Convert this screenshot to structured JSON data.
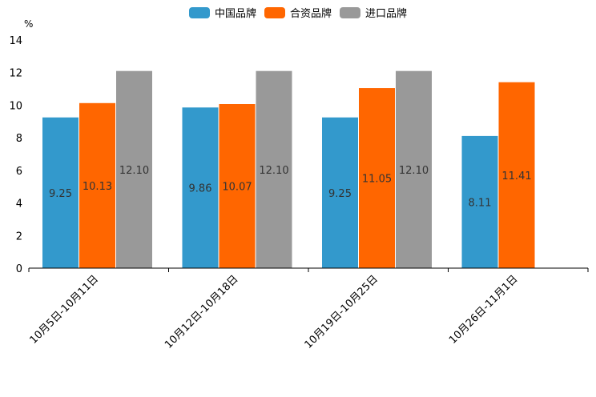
{
  "chart_data": {
    "type": "bar",
    "y_unit": "%",
    "categories": [
      "10月5日-10月11日",
      "10月12日-10月18日",
      "10月19日-10月25日",
      "10月26日-11月1日"
    ],
    "series": [
      {
        "name": "中国品牌",
        "color": "#3399cc",
        "values": [
          9.25,
          9.86,
          9.25,
          8.11
        ]
      },
      {
        "name": "合资品牌",
        "color": "#ff6600",
        "values": [
          10.13,
          10.07,
          11.05,
          11.41
        ]
      },
      {
        "name": "进口品牌",
        "color": "#999999",
        "values": [
          12.1,
          12.1,
          12.1,
          null
        ]
      }
    ],
    "ylim": [
      0,
      14
    ],
    "yticks": [
      0,
      2,
      4,
      6,
      8,
      10,
      12,
      14
    ],
    "legend_position": "top-center",
    "grid": false
  }
}
